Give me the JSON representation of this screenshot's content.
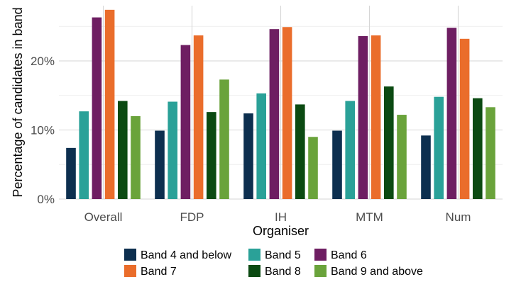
{
  "chart_data": {
    "type": "bar",
    "title": "",
    "xlabel": "Organiser",
    "ylabel": "Percentage of candidates in band",
    "categories": [
      "Overall",
      "FDP",
      "IH",
      "MTM",
      "Num"
    ],
    "ylim": [
      0,
      28
    ],
    "yticks": [
      0,
      10,
      20
    ],
    "ytick_labels": [
      "0%",
      "10%",
      "20%"
    ],
    "grid": true,
    "legend_position": "bottom",
    "series": [
      {
        "name": "Band 4 and below",
        "color": "#0d2f4f",
        "values": [
          7.4,
          9.9,
          12.4,
          9.9,
          9.2
        ]
      },
      {
        "name": "Band 5",
        "color": "#2aa198",
        "values": [
          12.7,
          14.1,
          15.3,
          14.2,
          14.8
        ]
      },
      {
        "name": "Band 6",
        "color": "#6e1e62",
        "values": [
          26.3,
          22.3,
          24.6,
          23.6,
          24.8
        ]
      },
      {
        "name": "Band 7",
        "color": "#ea6d2b",
        "values": [
          27.4,
          23.7,
          24.9,
          23.7,
          23.2
        ]
      },
      {
        "name": "Band 8",
        "color": "#0b4a12",
        "values": [
          14.2,
          12.6,
          13.7,
          16.3,
          14.6
        ]
      },
      {
        "name": "Band 9 and above",
        "color": "#6aa33b",
        "values": [
          12.0,
          17.3,
          9.0,
          12.2,
          13.3
        ]
      }
    ]
  }
}
